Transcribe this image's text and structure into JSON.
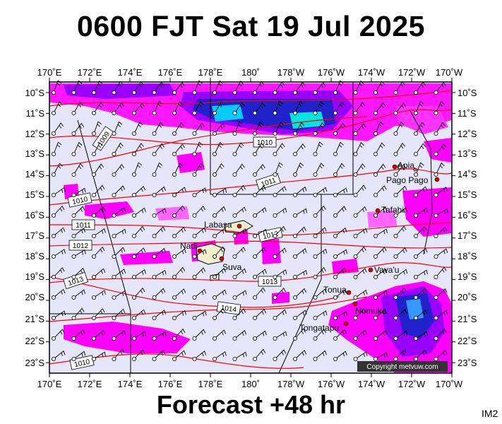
{
  "header": {
    "title": "0600 FJT Sat 19 Jul 2025"
  },
  "footer": {
    "forecast": "Forecast +48 hr",
    "code": "IM2"
  },
  "map": {
    "lon_labels": [
      "170˚E",
      "172˚E",
      "174˚E",
      "176˚E",
      "178˚E",
      "180˚",
      "178˚W",
      "176˚W",
      "174˚W",
      "172˚W",
      "170˚W"
    ],
    "lat_labels": [
      "10˚S",
      "11˚S",
      "12˚S",
      "13˚S",
      "14˚S",
      "15˚S",
      "16˚S",
      "17˚S",
      "18˚S",
      "19˚S",
      "20˚S",
      "21˚S",
      "22˚S",
      "23˚S"
    ],
    "places": [
      "Apia",
      "Pago Pago",
      "Tafahi",
      "Labasa",
      "Nadi",
      "Suva",
      "Vava'u",
      "Tonua",
      "Nomuka",
      "Tongatapu"
    ],
    "isobars": [
      "1009",
      "1010",
      "1011",
      "1010",
      "1011",
      "1012",
      "1012",
      "1013",
      "1013",
      "1014",
      "1010"
    ],
    "copyright": "Copyright metvuw.com",
    "colors": {
      "background": "#e6e6fa",
      "rain_light": "#ff00ff",
      "rain_mid": "#9900ff",
      "rain_heavy": "#0000cc",
      "rain_core": "#00ffee",
      "isobar": "#ff0000",
      "land": "#f0f0d0"
    }
  }
}
